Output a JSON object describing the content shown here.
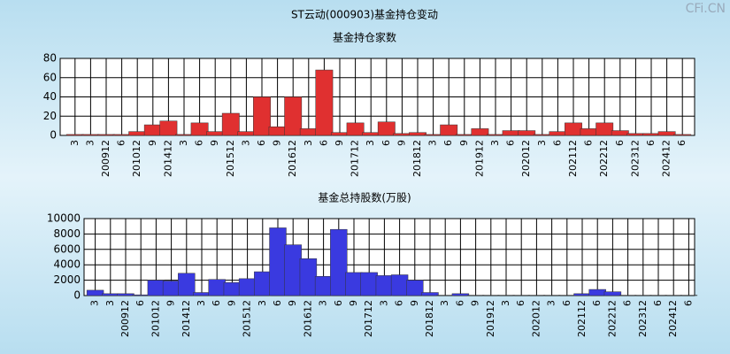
{
  "title": "ST云动(000903)基金持仓变动",
  "watermark": "CFi.CN",
  "chart_data": [
    {
      "type": "bar",
      "title": "基金持仓家数",
      "color": "#e03030",
      "categories": [
        "3",
        "3",
        "200912",
        "6",
        "201012",
        "9",
        "201412",
        "3",
        "6",
        "9",
        "201512",
        "3",
        "6",
        "9",
        "201612",
        "3",
        "6",
        "9",
        "201712",
        "3",
        "6",
        "9",
        "201812",
        "3",
        "6",
        "9",
        "201912",
        "3",
        "6",
        "202012",
        "3",
        "6",
        "202112",
        "6",
        "202212",
        "6",
        "202312",
        "6",
        "202412",
        "6"
      ],
      "values": [
        1,
        1,
        1,
        1,
        4,
        11,
        15,
        1,
        13,
        4,
        23,
        4,
        40,
        9,
        40,
        7,
        68,
        3,
        13,
        3,
        14,
        2,
        3,
        1,
        11,
        1,
        7,
        1,
        5,
        5,
        1,
        4,
        13,
        7,
        13,
        5,
        2,
        2,
        4,
        1
      ],
      "ylim": [
        0,
        80
      ],
      "yticks": [
        0,
        20,
        40,
        60,
        80
      ],
      "grid": true
    },
    {
      "type": "bar",
      "title": "基金总持股数(万股)",
      "color": "#3a3ae0",
      "categories": [
        "3",
        "3",
        "200912",
        "6",
        "201012",
        "9",
        "201412",
        "3",
        "6",
        "9",
        "201512",
        "3",
        "6",
        "9",
        "201612",
        "3",
        "6",
        "9",
        "201712",
        "3",
        "6",
        "9",
        "201812",
        "3",
        "6",
        "9",
        "201912",
        "3",
        "6",
        "202012",
        "3",
        "6",
        "202112",
        "6",
        "202212",
        "6",
        "202312",
        "6",
        "202412",
        "6"
      ],
      "values": [
        700,
        250,
        250,
        100,
        2000,
        1900,
        2900,
        400,
        2100,
        1700,
        2200,
        3100,
        8800,
        6600,
        4800,
        2500,
        8600,
        3000,
        3000,
        2600,
        2700,
        2000,
        400,
        50,
        250,
        50,
        50,
        50,
        50,
        50,
        50,
        50,
        250,
        800,
        500,
        50,
        50,
        50,
        50,
        50
      ],
      "ylim": [
        0,
        10000
      ],
      "yticks": [
        0,
        2000,
        4000,
        6000,
        8000,
        10000
      ],
      "grid": true
    }
  ]
}
